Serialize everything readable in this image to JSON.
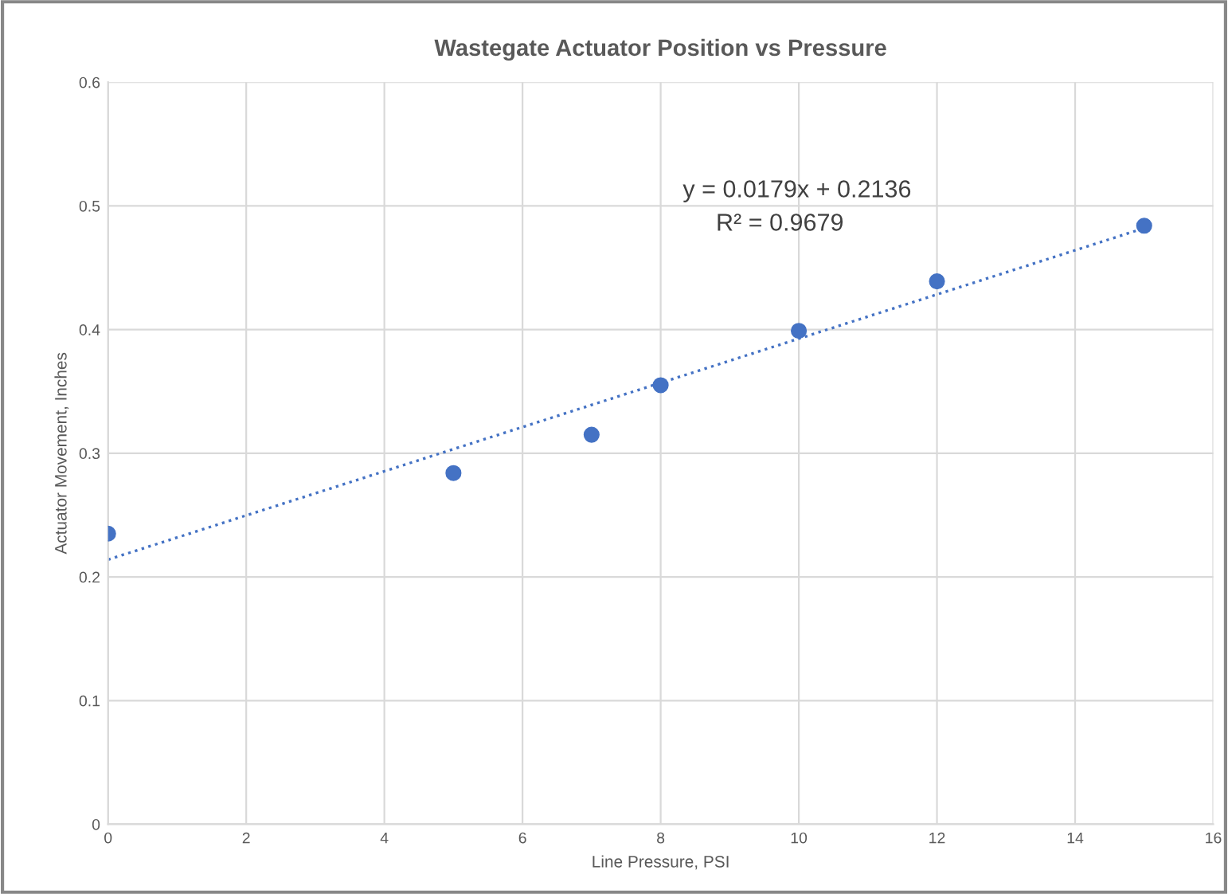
{
  "chart_data": {
    "type": "scatter",
    "title": "Wastegate Actuator Position vs Pressure",
    "xlabel": "Line Pressure, PSI",
    "ylabel": "Actuator Movement, Inches",
    "series": [
      {
        "color": "#4472c4",
        "marker": "circle",
        "x": [
          0,
          5,
          7,
          8,
          10,
          12,
          15
        ],
        "values": [
          0.235,
          0.284,
          0.315,
          0.355,
          0.399,
          0.439,
          0.484
        ]
      },
      {
        "type": "line",
        "color": "#4472c4",
        "marker": "none",
        "line_style": "dotted",
        "x": [
          0,
          15
        ],
        "values": [
          0.214,
          0.482
        ]
      }
    ],
    "annotations": [
      "y = 0.0179x + 0.2136",
      "R² = 0.9679"
    ],
    "xlim": [
      0,
      16
    ],
    "xticks": [
      0,
      2,
      4,
      6,
      8,
      10,
      12,
      14,
      16
    ],
    "ylim": [
      0,
      0.6
    ],
    "yticks": [
      0,
      0.1,
      0.2,
      0.3,
      0.4,
      0.5,
      0.6
    ],
    "grid": true,
    "legend": false
  }
}
